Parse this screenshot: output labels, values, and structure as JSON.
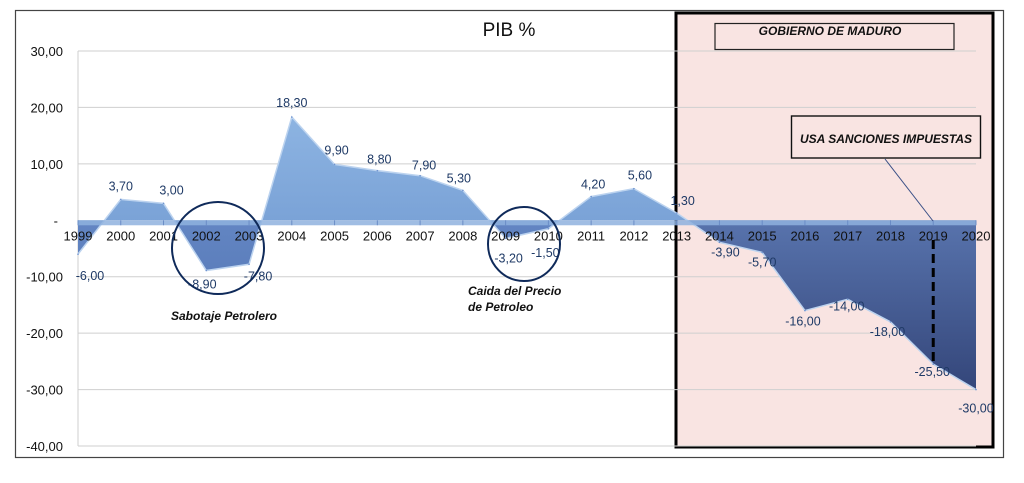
{
  "chart_data": {
    "type": "area",
    "title": "PIB %",
    "xlabel": "",
    "ylabel": "",
    "ylim": [
      -40,
      30
    ],
    "yticks": [
      30,
      20,
      10,
      0,
      -10,
      -20,
      -30,
      -40
    ],
    "ytick_labels": [
      "30,00",
      "20,00",
      "10,00",
      "-",
      "-10,00",
      "-20,00",
      "-30,00",
      "-40,00"
    ],
    "grid": true,
    "categories": [
      "1999",
      "2000",
      "2001",
      "2002",
      "2003",
      "2004",
      "2005",
      "2006",
      "2007",
      "2008",
      "2009",
      "2010",
      "2011",
      "2012",
      "2013",
      "2014",
      "2015",
      "2016",
      "2017",
      "2018",
      "2019",
      "2020"
    ],
    "values": [
      -6.0,
      3.7,
      3.0,
      -8.9,
      -7.8,
      18.3,
      9.9,
      8.8,
      7.9,
      5.3,
      -3.2,
      -1.5,
      4.2,
      5.6,
      1.3,
      -3.9,
      -5.7,
      -16.0,
      -14.0,
      -18.0,
      -25.5,
      -30.0
    ],
    "data_labels": [
      "-6,00",
      "3,70",
      "3,00",
      "-8,90",
      "-7,80",
      "18,30",
      "9,90",
      "8,80",
      "7,90",
      "5,30",
      "-3,20",
      "-1,50",
      "4,20",
      "5,60",
      "1,30",
      "-3,90",
      "-5,70",
      "-16,00",
      "-14,00",
      "-18,00",
      "-25,50",
      "-30,00"
    ],
    "annotations": {
      "sabotaje": "Sabotaje Petrolero",
      "caida_line1": "Caida del Precio",
      "caida_line2": "de Petroleo",
      "gobierno": "GOBIERNO DE MADURO",
      "sanciones": "USA SANCIONES IMPUESTAS"
    },
    "highlight_region": {
      "from": "2013",
      "to": "2020",
      "color": "#f9e4e2"
    },
    "colors": {
      "area_top": "#8cb1de",
      "area_bottom": "#5d86c2",
      "area_dark": "#3a4f86",
      "label": "#1f3a66",
      "circle": "#0f2a5a"
    }
  }
}
